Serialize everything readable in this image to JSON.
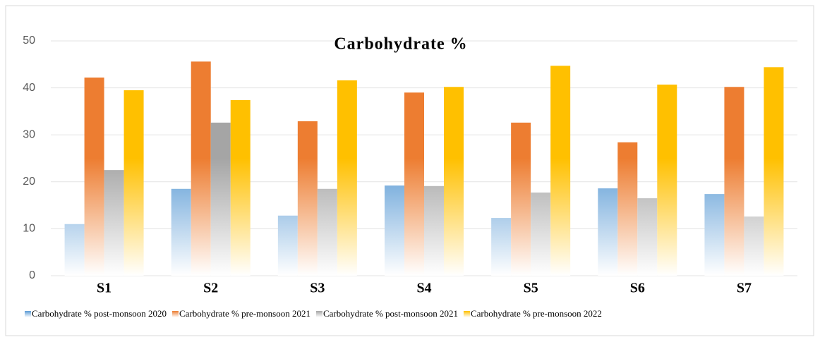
{
  "chart_data": {
    "type": "bar",
    "title": "Carbohydrate %",
    "categories": [
      "S1",
      "S2",
      "S3",
      "S4",
      "S5",
      "S6",
      "S7"
    ],
    "series": [
      {
        "name": "Carbohydrate % post-monsoon 2020",
        "color": "#5b9bd5",
        "values": [
          11.0,
          18.5,
          12.8,
          19.2,
          12.3,
          18.6,
          17.4
        ]
      },
      {
        "name": "Carbohydrate % pre-monsoon 2021",
        "color": "#ed7d31",
        "values": [
          42.2,
          45.6,
          32.9,
          39.0,
          32.6,
          28.4,
          40.2
        ]
      },
      {
        "name": "Carbohydrate % post-monsoon 2021",
        "color": "#a5a5a5",
        "values": [
          22.5,
          32.6,
          18.5,
          19.1,
          17.7,
          16.5,
          12.6
        ]
      },
      {
        "name": "Carbohydrate % pre-monsoon 2022",
        "color": "#ffc000",
        "values": [
          39.5,
          37.4,
          41.6,
          40.2,
          44.7,
          40.7,
          44.4
        ]
      }
    ],
    "ylim": [
      0,
      50
    ],
    "yticks": [
      0,
      10,
      20,
      30,
      40,
      50
    ],
    "grid": true,
    "legend": "bottom"
  }
}
